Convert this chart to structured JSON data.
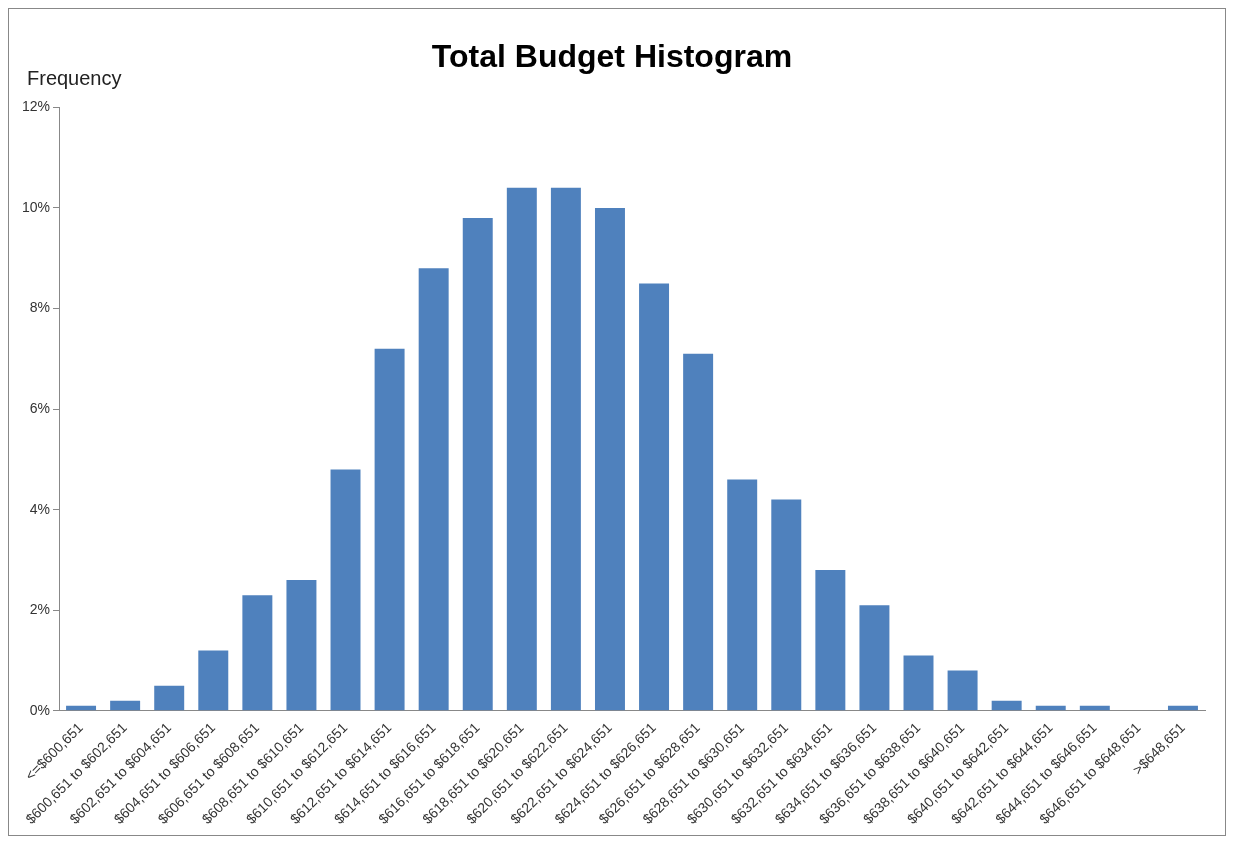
{
  "chart_data": {
    "type": "bar",
    "title": "Total Budget Histogram",
    "ylabel": "Frequency",
    "categories": [
      "<=$600,651",
      "$600,651 to $602,651",
      "$602,651 to $604,651",
      "$604,651 to $606,651",
      "$606,651 to $608,651",
      "$608,651 to $610,651",
      "$610,651 to $612,651",
      "$612,651 to $614,651",
      "$614,651 to $616,651",
      "$616,651 to $618,651",
      "$618,651 to $620,651",
      "$620,651 to $622,651",
      "$622,651 to $624,651",
      "$624,651 to $626,651",
      "$626,651 to $628,651",
      "$628,651 to $630,651",
      "$630,651 to $632,651",
      "$632,651 to $634,651",
      "$634,651 to $636,651",
      "$636,651 to $638,651",
      "$638,651 to $640,651",
      "$640,651 to $642,651",
      "$642,651 to $644,651",
      "$644,651 to $646,651",
      "$646,651 to $648,651",
      ">$648,651"
    ],
    "values": [
      0.1,
      0.2,
      0.5,
      1.2,
      2.3,
      2.6,
      4.8,
      7.2,
      8.8,
      9.8,
      10.4,
      10.4,
      10.0,
      8.5,
      7.1,
      4.6,
      4.2,
      2.8,
      2.1,
      1.1,
      0.8,
      0.2,
      0.1,
      0.1,
      0,
      0.1
    ],
    "color": "#4f81bd",
    "ylim": [
      0,
      12
    ],
    "yticks": [
      {
        "value": 0,
        "label": "0%"
      },
      {
        "value": 2,
        "label": "2%"
      },
      {
        "value": 4,
        "label": "4%"
      },
      {
        "value": 6,
        "label": "6%"
      },
      {
        "value": 8,
        "label": "8%"
      },
      {
        "value": 10,
        "label": "10%"
      },
      {
        "value": 12,
        "label": "12%"
      }
    ],
    "grid": false,
    "legend": false
  }
}
